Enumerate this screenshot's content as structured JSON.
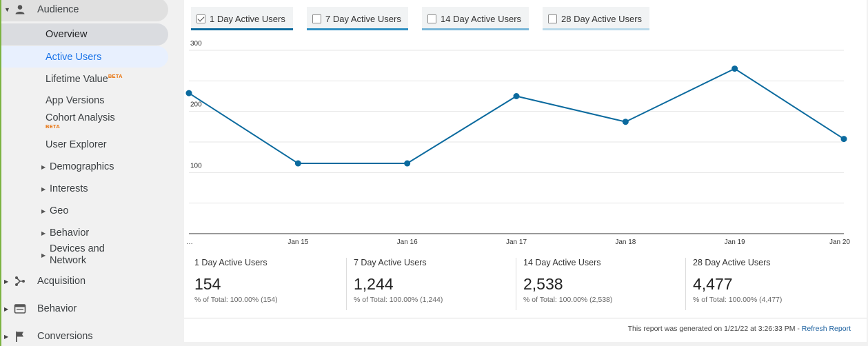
{
  "sidebar": {
    "audience": "Audience",
    "items": {
      "overview": "Overview",
      "active_users": "Active Users",
      "lifetime_value": "Lifetime Value",
      "app_versions": "App Versions",
      "cohort_analysis": "Cohort Analysis",
      "user_explorer": "User Explorer",
      "demographics": "Demographics",
      "interests": "Interests",
      "geo": "Geo",
      "behavior": "Behavior",
      "devices_line1": "Devices and",
      "devices_line2": "Network"
    },
    "beta": "BETA",
    "acquisition": "Acquisition",
    "behavior_top": "Behavior",
    "conversions": "Conversions"
  },
  "tabs": [
    {
      "label": "1 Day Active Users",
      "checked": true,
      "color": "#0b6a9e"
    },
    {
      "label": "7 Day Active Users",
      "checked": false,
      "color": "#2e8fc2"
    },
    {
      "label": "14 Day Active Users",
      "checked": false,
      "color": "#78b6d8"
    },
    {
      "label": "28 Day Active Users",
      "checked": false,
      "color": "#b9d9ea"
    }
  ],
  "chart_data": {
    "type": "line",
    "categories": [
      "…",
      "Jan 15",
      "Jan 16",
      "Jan 17",
      "Jan 18",
      "Jan 19",
      "Jan 20"
    ],
    "series": [
      {
        "name": "1 Day Active Users",
        "values": [
          230,
          115,
          115,
          225,
          183,
          270,
          155
        ]
      }
    ],
    "yticks": [
      100,
      200,
      300
    ],
    "ylim": [
      0,
      300
    ],
    "color": "#0b6a9e"
  },
  "summary": [
    {
      "name": "1 Day Active Users",
      "value": "154",
      "total": "% of Total: 100.00% (154)"
    },
    {
      "name": "7 Day Active Users",
      "value": "1,244",
      "total": "% of Total: 100.00% (1,244)"
    },
    {
      "name": "14 Day Active Users",
      "value": "2,538",
      "total": "% of Total: 100.00% (2,538)"
    },
    {
      "name": "28 Day Active Users",
      "value": "4,477",
      "total": "% of Total: 100.00% (4,477)"
    }
  ],
  "footer": {
    "text": "This report was generated on 1/21/22 at 3:26:33 PM - ",
    "link": "Refresh Report"
  }
}
